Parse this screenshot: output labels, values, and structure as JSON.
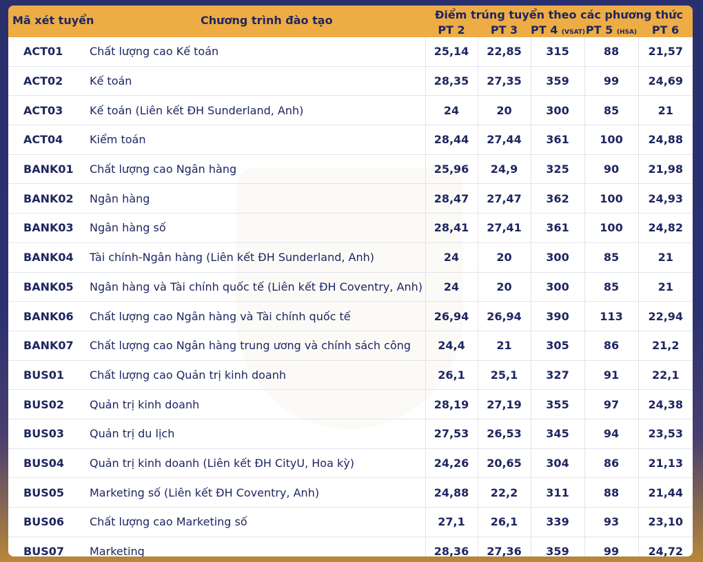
{
  "header": {
    "code_label": "Mã xét tuyển",
    "program_label": "Chương trình đào tạo",
    "score_group_label": "Điểm trúng tuyển theo các phương thức",
    "methods": [
      {
        "label": "PT 2",
        "note": ""
      },
      {
        "label": "PT 3",
        "note": ""
      },
      {
        "label": "PT 4",
        "note": "(VSAT)"
      },
      {
        "label": "PT 5",
        "note": "(HSA)"
      },
      {
        "label": "PT 6",
        "note": ""
      }
    ]
  },
  "rows": [
    {
      "code": "ACT01",
      "program": "Chất lượng cao Kế toán",
      "scores": [
        "25,14",
        "22,85",
        "315",
        "88",
        "21,57"
      ]
    },
    {
      "code": "ACT02",
      "program": "Kế toán",
      "scores": [
        "28,35",
        "27,35",
        "359",
        "99",
        "24,69"
      ]
    },
    {
      "code": "ACT03",
      "program": "Kế toán (Liên kết ĐH Sunderland, Anh)",
      "scores": [
        "24",
        "20",
        "300",
        "85",
        "21"
      ]
    },
    {
      "code": "ACT04",
      "program": "Kiểm toán",
      "scores": [
        "28,44",
        "27,44",
        "361",
        "100",
        "24,88"
      ]
    },
    {
      "code": "BANK01",
      "program": "Chất lượng cao Ngân hàng",
      "scores": [
        "25,96",
        "24,9",
        "325",
        "90",
        "21,98"
      ]
    },
    {
      "code": "BANK02",
      "program": "Ngân hàng",
      "scores": [
        "28,47",
        "27,47",
        "362",
        "100",
        "24,93"
      ]
    },
    {
      "code": "BANK03",
      "program": "Ngân hàng số",
      "scores": [
        "28,41",
        "27,41",
        "361",
        "100",
        "24,82"
      ]
    },
    {
      "code": "BANK04",
      "program": "Tài chính-Ngân hàng (Liên kết ĐH Sunderland, Anh)",
      "scores": [
        "24",
        "20",
        "300",
        "85",
        "21"
      ]
    },
    {
      "code": "BANK05",
      "program": "Ngân hàng và Tài chính quốc tế (Liên kết ĐH Coventry, Anh)",
      "scores": [
        "24",
        "20",
        "300",
        "85",
        "21"
      ]
    },
    {
      "code": "BANK06",
      "program": "Chất lượng cao Ngân hàng và Tài chính quốc tế",
      "scores": [
        "26,94",
        "26,94",
        "390",
        "113",
        "22,94"
      ]
    },
    {
      "code": "BANK07",
      "program": "Chất lượng cao Ngân hàng trung ương và chính sách công",
      "scores": [
        "24,4",
        "21",
        "305",
        "86",
        "21,2"
      ]
    },
    {
      "code": "BUS01",
      "program": "Chất lượng cao Quản trị kinh doanh",
      "scores": [
        "26,1",
        "25,1",
        "327",
        "91",
        "22,1"
      ]
    },
    {
      "code": "BUS02",
      "program": "Quản trị kinh doanh",
      "scores": [
        "28,19",
        "27,19",
        "355",
        "97",
        "24,38"
      ]
    },
    {
      "code": "BUS03",
      "program": "Quản trị du lịch",
      "scores": [
        "27,53",
        "26,53",
        "345",
        "94",
        "23,53"
      ]
    },
    {
      "code": "BUS04",
      "program": "Quản trị kinh doanh (Liên kết ĐH CityU, Hoa kỳ)",
      "scores": [
        "24,26",
        "20,65",
        "304",
        "86",
        "21,13"
      ]
    },
    {
      "code": "BUS05",
      "program": "Marketing số (Liên kết ĐH Coventry, Anh)",
      "scores": [
        "24,88",
        "22,2",
        "311",
        "88",
        "21,44"
      ]
    },
    {
      "code": "BUS06",
      "program": "Chất lượng cao Marketing số",
      "scores": [
        "27,1",
        "26,1",
        "339",
        "93",
        "23,10"
      ]
    },
    {
      "code": "BUS07",
      "program": "Marketing",
      "scores": [
        "28,36",
        "27,36",
        "359",
        "99",
        "24,72"
      ]
    }
  ],
  "colors": {
    "header_bg": "#eeac45",
    "text": "#1e2660",
    "page_bg": "#2a2f6e"
  }
}
